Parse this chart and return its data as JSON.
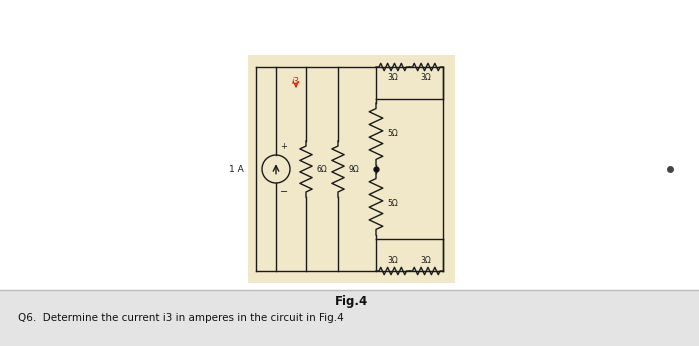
{
  "panel_bg": "#f0e8c8",
  "page_bg_top": "#ffffff",
  "page_bg_bot": "#e8e8e8",
  "fig_label": "Fig.4",
  "question_text": "Q6.  Determine the current i3 in amperes in the circuit in Fig.4",
  "current_source_label": "1 A",
  "r1": "6Ω",
  "r2": "9Ω",
  "r_top_left": "3Ω",
  "r_top_right": "3Ω",
  "r_mid_top": "5Ω",
  "r_mid_bot": "5Ω",
  "r_bot_left": "3Ω",
  "r_bot_right": "3Ω",
  "i3_label": "i3",
  "wire_color": "#1a1a1a",
  "label_red": "#cc2200",
  "dot_color": "#111111"
}
